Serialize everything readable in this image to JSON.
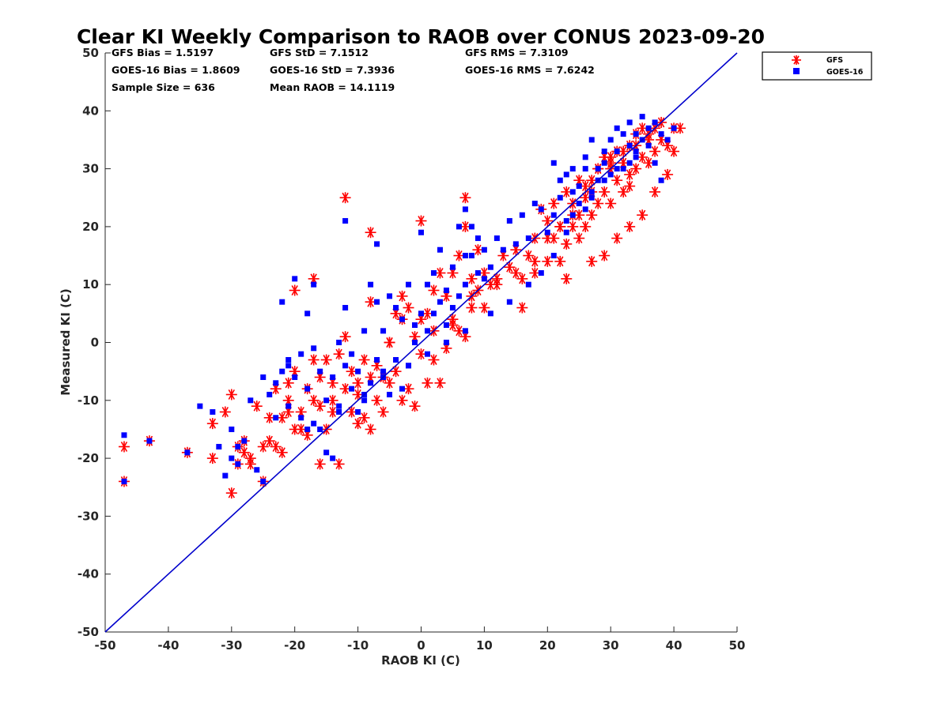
{
  "chart_data": {
    "type": "scatter",
    "title": "Clear KI Weekly Comparison to RAOB over CONUS 2023-09-20",
    "xlabel": "RAOB KI (C)",
    "ylabel": "Measured KI (C)",
    "xlim": [
      -50,
      50
    ],
    "ylim": [
      -50,
      50
    ],
    "xticks": [
      "-50",
      "-40",
      "-30",
      "-20",
      "-10",
      "0",
      "10",
      "20",
      "30",
      "40",
      "50"
    ],
    "yticks": [
      "50",
      "40",
      "30",
      "20",
      "10",
      "0",
      "-10",
      "-20",
      "-30",
      "-40",
      "-50"
    ],
    "grid": false,
    "reference_line": {
      "from": [
        -50,
        -50
      ],
      "to": [
        50,
        50
      ],
      "color": "#0000cc"
    },
    "stats": {
      "gfs_bias": "GFS Bias = 1.5197",
      "gfs_std": "GFS StD = 7.1512",
      "gfs_rms": "GFS RMS = 7.3109",
      "goes_bias": "GOES-16 Bias = 1.8609",
      "goes_std": "GOES-16 StD = 7.3936",
      "goes_rms": "GOES-16 RMS = 7.6242",
      "sample_size": "Sample Size = 636",
      "mean_raob": "Mean RAOB = 14.1119"
    },
    "legend": {
      "placement": "outside-top-right",
      "entries": [
        "GFS",
        "GOES-16"
      ]
    },
    "series": [
      {
        "name": "GFS",
        "marker": "asterisk",
        "color": "#ff0000",
        "x": [
          -47,
          -47,
          -43,
          -37,
          -33,
          -33,
          -31,
          -30,
          -30,
          -29,
          -29,
          -28,
          -28,
          -27,
          -26,
          -25,
          -25,
          -24,
          -24,
          -23,
          -22,
          -22,
          -21,
          -21,
          -20,
          -20,
          -20,
          -19,
          -18,
          -18,
          -17,
          -17,
          -16,
          -16,
          -16,
          -15,
          -15,
          -14,
          -14,
          -13,
          -13,
          -12,
          -12,
          -11,
          -11,
          -10,
          -10,
          -9,
          -9,
          -8,
          -8,
          -8,
          -7,
          -7,
          -6,
          -6,
          -5,
          -5,
          -4,
          -4,
          -3,
          -3,
          -2,
          -2,
          -1,
          -1,
          0,
          0,
          1,
          1,
          2,
          2,
          3,
          3,
          4,
          4,
          5,
          5,
          6,
          6,
          7,
          7,
          8,
          8,
          9,
          9,
          10,
          10,
          11,
          12,
          13,
          14,
          15,
          16,
          16,
          17,
          18,
          18,
          19,
          20,
          20,
          21,
          21,
          22,
          22,
          23,
          23,
          24,
          24,
          25,
          25,
          26,
          26,
          27,
          27,
          28,
          28,
          29,
          29,
          30,
          30,
          31,
          31,
          32,
          32,
          33,
          33,
          34,
          34,
          35,
          35,
          36,
          36,
          37,
          37,
          38,
          38,
          39,
          39,
          40,
          40,
          41,
          -12,
          -8,
          7,
          0,
          -21,
          -17,
          -3,
          23,
          25,
          27,
          29,
          31,
          33,
          35,
          37,
          33,
          26,
          28,
          30,
          32,
          34,
          36,
          30,
          27,
          24,
          22,
          20,
          18,
          15,
          12,
          8,
          5,
          2,
          -5,
          -10,
          -14,
          -19,
          -23,
          -27
        ],
        "y": [
          -18,
          -24,
          -17,
          -19,
          -14,
          -20,
          -12,
          -26,
          -9,
          -18,
          -21,
          -19,
          -17,
          -21,
          -11,
          -18,
          -24,
          -17,
          -13,
          -8,
          -19,
          -13,
          -7,
          -10,
          -15,
          -5,
          9,
          -12,
          -16,
          -8,
          -10,
          -3,
          -6,
          -11,
          -21,
          -3,
          -15,
          -7,
          -12,
          -2,
          -21,
          -8,
          1,
          -12,
          -5,
          -14,
          -9,
          -13,
          -3,
          -15,
          -6,
          7,
          -10,
          -4,
          -12,
          -6,
          -7,
          0,
          -5,
          5,
          -10,
          4,
          -8,
          6,
          -11,
          1,
          -2,
          4,
          -7,
          5,
          -3,
          9,
          -7,
          12,
          -1,
          8,
          3,
          12,
          2,
          15,
          1,
          20,
          6,
          11,
          9,
          16,
          6,
          12,
          10,
          11,
          15,
          13,
          16,
          6,
          11,
          15,
          18,
          12,
          23,
          14,
          21,
          18,
          24,
          14,
          20,
          17,
          26,
          20,
          24,
          22,
          28,
          20,
          25,
          22,
          28,
          24,
          30,
          26,
          32,
          24,
          30,
          28,
          33,
          26,
          31,
          29,
          34,
          30,
          36,
          32,
          37,
          31,
          36,
          33,
          37,
          35,
          38,
          29,
          34,
          33,
          37,
          37,
          25,
          19,
          25,
          21,
          -12,
          11,
          8,
          11,
          18,
          14,
          15,
          18,
          20,
          22,
          26,
          27,
          27,
          30,
          31,
          33,
          34,
          35,
          32,
          26,
          22,
          20,
          18,
          14,
          12,
          10,
          8,
          4,
          2,
          0,
          -7,
          -10,
          -15,
          -18,
          -20
        ]
      },
      {
        "name": "GOES-16",
        "marker": "square",
        "color": "#0000ff",
        "x": [
          -47,
          -47,
          -43,
          -37,
          -35,
          -33,
          -32,
          -31,
          -30,
          -30,
          -29,
          -29,
          -28,
          -27,
          -26,
          -25,
          -25,
          -24,
          -23,
          -23,
          -22,
          -22,
          -21,
          -21,
          -20,
          -20,
          -19,
          -19,
          -18,
          -18,
          -17,
          -17,
          -16,
          -16,
          -15,
          -15,
          -14,
          -14,
          -13,
          -13,
          -12,
          -12,
          -11,
          -11,
          -10,
          -10,
          -9,
          -9,
          -8,
          -8,
          -7,
          -7,
          -6,
          -6,
          -5,
          -5,
          -4,
          -4,
          -3,
          -3,
          -2,
          -2,
          -1,
          -1,
          0,
          0,
          1,
          1,
          2,
          2,
          3,
          3,
          4,
          4,
          5,
          5,
          6,
          6,
          7,
          7,
          8,
          8,
          9,
          9,
          10,
          10,
          11,
          12,
          13,
          14,
          15,
          16,
          17,
          18,
          19,
          20,
          21,
          21,
          22,
          22,
          23,
          23,
          24,
          24,
          25,
          25,
          26,
          26,
          27,
          27,
          28,
          28,
          29,
          29,
          30,
          30,
          31,
          31,
          32,
          32,
          33,
          33,
          34,
          34,
          35,
          35,
          36,
          36,
          37,
          37,
          38,
          38,
          39,
          40,
          -12,
          -17,
          7,
          -21,
          -7,
          27,
          33,
          26,
          29,
          31,
          34,
          24,
          23,
          21,
          19,
          17,
          14,
          11,
          7,
          4,
          1,
          -2,
          -6,
          -9,
          -13,
          -18
        ],
        "y": [
          -16,
          -24,
          -17,
          -19,
          -11,
          -12,
          -18,
          -23,
          -15,
          -20,
          -18,
          -21,
          -17,
          -10,
          -22,
          -24,
          -6,
          -9,
          -7,
          -13,
          -5,
          7,
          -4,
          -11,
          11,
          -6,
          -13,
          -2,
          -8,
          5,
          -1,
          -14,
          -5,
          -15,
          -10,
          -19,
          -6,
          -20,
          0,
          -11,
          -4,
          6,
          -8,
          -2,
          -5,
          -12,
          2,
          -10,
          -7,
          10,
          -3,
          17,
          -5,
          2,
          -9,
          8,
          -3,
          6,
          4,
          -8,
          10,
          -4,
          0,
          3,
          5,
          19,
          10,
          2,
          12,
          5,
          7,
          16,
          3,
          9,
          6,
          13,
          8,
          20,
          10,
          15,
          15,
          20,
          12,
          18,
          11,
          16,
          13,
          18,
          16,
          21,
          17,
          22,
          18,
          24,
          23,
          19,
          31,
          22,
          25,
          28,
          21,
          29,
          26,
          30,
          27,
          24,
          30,
          32,
          26,
          35,
          30,
          28,
          33,
          31,
          29,
          35,
          33,
          37,
          30,
          36,
          38,
          34,
          32,
          36,
          39,
          35,
          34,
          37,
          31,
          38,
          36,
          28,
          35,
          37,
          21,
          10,
          23,
          -3,
          7,
          25,
          31,
          23,
          28,
          30,
          33,
          22,
          19,
          15,
          12,
          10,
          7,
          5,
          2,
          0,
          -2,
          -4,
          -6,
          -9,
          -12,
          -15
        ]
      }
    ]
  }
}
